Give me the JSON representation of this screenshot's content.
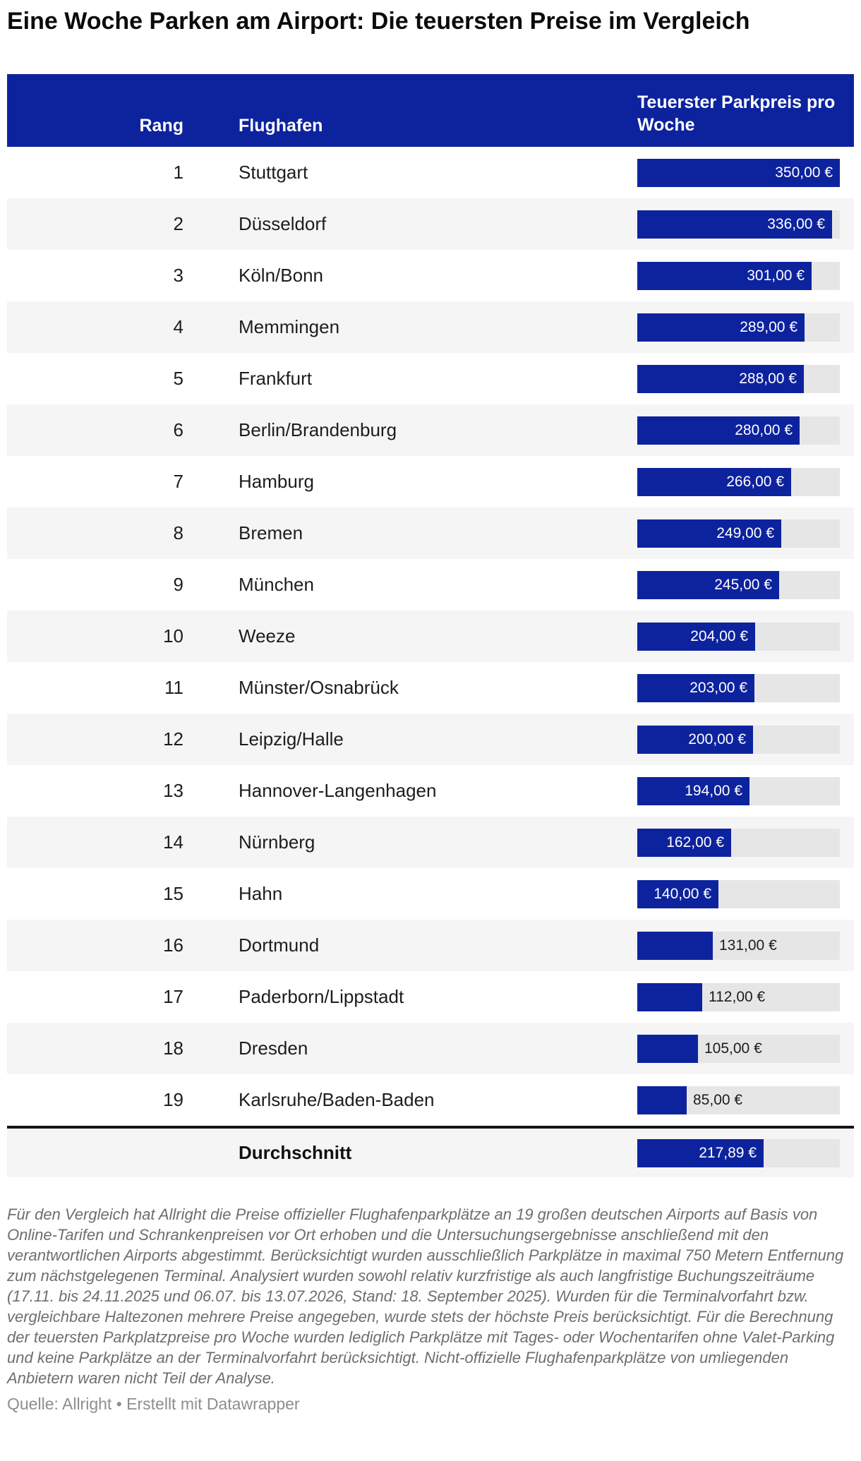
{
  "title": "Eine Woche Parken am Airport: Die teuersten Preise im Vergleich",
  "table": {
    "headers": {
      "rank": "Rang",
      "airport": "Flughafen",
      "price": "Teuerster Parkpreis pro Woche"
    },
    "max_value": 350,
    "rows": [
      {
        "rank": "1",
        "airport": "Stuttgart",
        "value": 350,
        "value_label": "350,00 €"
      },
      {
        "rank": "2",
        "airport": "Düsseldorf",
        "value": 336,
        "value_label": "336,00 €"
      },
      {
        "rank": "3",
        "airport": "Köln/Bonn",
        "value": 301,
        "value_label": "301,00 €"
      },
      {
        "rank": "4",
        "airport": "Memmingen",
        "value": 289,
        "value_label": "289,00 €"
      },
      {
        "rank": "5",
        "airport": "Frankfurt",
        "value": 288,
        "value_label": "288,00 €"
      },
      {
        "rank": "6",
        "airport": "Berlin/Brandenburg",
        "value": 280,
        "value_label": "280,00 €"
      },
      {
        "rank": "7",
        "airport": "Hamburg",
        "value": 266,
        "value_label": "266,00 €"
      },
      {
        "rank": "8",
        "airport": "Bremen",
        "value": 249,
        "value_label": "249,00 €"
      },
      {
        "rank": "9",
        "airport": "München",
        "value": 245,
        "value_label": "245,00 €"
      },
      {
        "rank": "10",
        "airport": "Weeze",
        "value": 204,
        "value_label": "204,00 €"
      },
      {
        "rank": "11",
        "airport": "Münster/Osnabrück",
        "value": 203,
        "value_label": "203,00 €"
      },
      {
        "rank": "12",
        "airport": "Leipzig/Halle",
        "value": 200,
        "value_label": "200,00 €"
      },
      {
        "rank": "13",
        "airport": "Hannover-Langenhagen",
        "value": 194,
        "value_label": "194,00 €"
      },
      {
        "rank": "14",
        "airport": "Nürnberg",
        "value": 162,
        "value_label": "162,00 €"
      },
      {
        "rank": "15",
        "airport": "Hahn",
        "value": 140,
        "value_label": "140,00 €"
      },
      {
        "rank": "16",
        "airport": "Dortmund",
        "value": 131,
        "value_label": "131,00 €"
      },
      {
        "rank": "17",
        "airport": "Paderborn/Lippstadt",
        "value": 112,
        "value_label": "112,00 €"
      },
      {
        "rank": "18",
        "airport": "Dresden",
        "value": 105,
        "value_label": "105,00 €"
      },
      {
        "rank": "19",
        "airport": "Karlsruhe/Baden-Baden",
        "value": 85,
        "value_label": "85,00 €"
      }
    ],
    "summary": {
      "label": "Durchschnitt",
      "value": 217.89,
      "value_label": "217,89 €"
    }
  },
  "chart_data": {
    "type": "bar",
    "orientation": "horizontal",
    "title": "Eine Woche Parken am Airport: Die teuersten Preise im Vergleich",
    "categories": [
      "Stuttgart",
      "Düsseldorf",
      "Köln/Bonn",
      "Memmingen",
      "Frankfurt",
      "Berlin/Brandenburg",
      "Hamburg",
      "Bremen",
      "München",
      "Weeze",
      "Münster/Osnabrück",
      "Leipzig/Halle",
      "Hannover-Langenhagen",
      "Nürnberg",
      "Hahn",
      "Dortmund",
      "Paderborn/Lippstadt",
      "Dresden",
      "Karlsruhe/Baden-Baden"
    ],
    "values": [
      350,
      336,
      301,
      289,
      288,
      280,
      266,
      249,
      245,
      204,
      203,
      200,
      194,
      162,
      140,
      131,
      112,
      105,
      85
    ],
    "average": 217.89,
    "xlabel": "Teuerster Parkpreis pro Woche",
    "ylabel": "Flughafen",
    "xlim": [
      0,
      350
    ],
    "unit": "€",
    "grid": false,
    "legend_position": "none"
  },
  "colors": {
    "bar": "#0d239e",
    "header_bg": "#0d239e",
    "header_text": "#ffffff",
    "row_stripe": "#f5f5f5",
    "bar_track": "#e6e6e6",
    "bar_label_inside": "#ffffff",
    "bar_label_outside": "#1d1d1d"
  },
  "footer": {
    "methodology": "Für den Vergleich hat Allright die Preise offizieller Flughafenparkplätze an 19 großen deutschen Airports auf Basis von Online-Tarifen und Schrankenpreisen vor Ort erhoben und die Untersuchungsergebnisse anschließend mit den verantwortlichen Airports abgestimmt. Berücksichtigt wurden ausschließlich Parkplätze in maximal 750 Metern Entfernung zum nächstgelegenen Terminal. Analysiert wurden sowohl relativ kurzfristige als auch langfristige Buchungszeiträume (17.11. bis 24.11.2025 und 06.07. bis 13.07.2026, Stand: 18. September 2025). Wurden für die Terminalvorfahrt bzw. vergleichbare Haltezonen mehrere Preise angegeben, wurde stets der höchste Preis berücksichtigt. Für die Berechnung der teuersten Parkplatzpreise pro Woche wurden lediglich Parkplätze mit Tages- oder Wochentarifen ohne Valet-Parking und keine Parkplätze an der Terminalvorfahrt berücksichtigt. Nicht-offizielle Flughafenparkplätze von umliegenden Anbietern waren nicht Teil der Analyse.",
    "source_prefix": "Quelle:",
    "source_name": "Allright",
    "separator": "•",
    "made_with": "Erstellt mit Datawrapper"
  }
}
